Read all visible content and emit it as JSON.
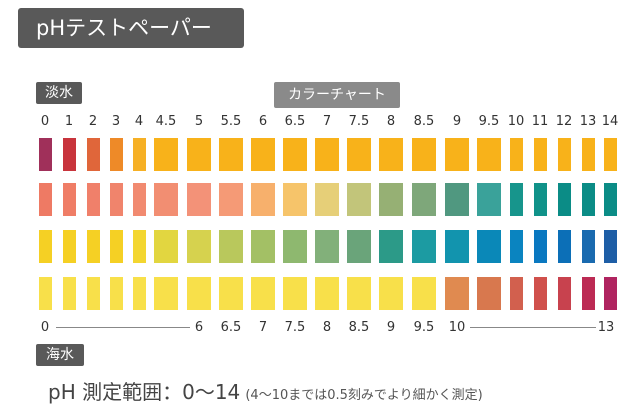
{
  "title": "pHテストペーパー",
  "freshwater_label": "淡水",
  "chart_label": "カラーチャート",
  "seawater_label": "海水",
  "range_text": "pH 測定範囲：0〜14",
  "range_note": "(4〜10までは0.5刻みでより細かく測定)",
  "ph_values": [
    "0",
    "1",
    "2",
    "3",
    "4",
    "4.5",
    "5",
    "5.5",
    "6",
    "6.5",
    "7",
    "7.5",
    "8",
    "8.5",
    "9",
    "9.5",
    "10",
    "11",
    "12",
    "13",
    "14"
  ],
  "rows": [
    [
      "#a0305a",
      "#c8343c",
      "#e0663a",
      "#ee8a28",
      "#f6b025",
      "#f8b21a",
      "#f8b21a",
      "#f8b21a",
      "#f8b21a",
      "#f8b21a",
      "#f8b21a",
      "#f8b21a",
      "#f8b21a",
      "#f8b21a",
      "#f8b21a",
      "#f8b21a",
      "#f8b21a",
      "#f8b21a",
      "#f8b21a",
      "#f8b21a",
      "#f8b21a"
    ],
    [
      "#ee7a64",
      "#ef7d66",
      "#f0806a",
      "#f0846c",
      "#f18a70",
      "#f28e72",
      "#f39278",
      "#f59a76",
      "#f7b06c",
      "#f6c46a",
      "#e6cf78",
      "#c2c57a",
      "#96b074",
      "#7ea77a",
      "#509880",
      "#3aa29a",
      "#17958c",
      "#109289",
      "#0b8c86",
      "#0b8c86",
      "#0b8c86"
    ],
    [
      "#f5d024",
      "#f5d024",
      "#f5d024",
      "#f5d024",
      "#f3d630",
      "#e2d640",
      "#d6d24e",
      "#b9c85c",
      "#a3c065",
      "#8eb86f",
      "#82b07a",
      "#6aa47a",
      "#2c9a88",
      "#1c9ba2",
      "#1294ae",
      "#0a88b8",
      "#0a84c0",
      "#0a78c0",
      "#0c6fb7",
      "#1a6aaf",
      "#1e5ea6"
    ],
    [
      "#f8e04a",
      "#f8e04a",
      "#f8e04a",
      "#f8e04a",
      "#f8e04a",
      "#f8e04a",
      "#f8e04a",
      "#f8e04a",
      "#f8e04a",
      "#f8e04a",
      "#f8e04a",
      "#f8e04a",
      "#f8e04a",
      "#f8e04a",
      "#e08a50",
      "#d8784e",
      "#d2604e",
      "#d0504c",
      "#c8424e",
      "#bc2a54",
      "#b02460"
    ]
  ],
  "seawater_ticks": [
    "0",
    "6",
    "6.5",
    "7",
    "7.5",
    "8",
    "8.5",
    "9",
    "9.5",
    "10",
    "13"
  ]
}
